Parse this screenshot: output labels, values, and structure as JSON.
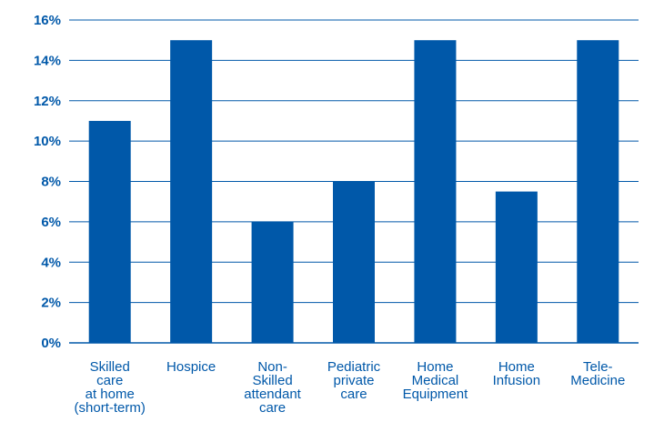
{
  "colors": {
    "bar": "#0058A9",
    "text": "#0058A9",
    "grid": "#0058A9"
  },
  "chart_data": {
    "type": "bar",
    "title": "",
    "xlabel": "",
    "ylabel": "",
    "ylim": [
      0,
      16
    ],
    "yticks": [
      0,
      2,
      4,
      6,
      8,
      10,
      12,
      14,
      16
    ],
    "ytick_labels": [
      "0%",
      "2%",
      "4%",
      "6%",
      "8%",
      "10%",
      "12%",
      "14%",
      "16%"
    ],
    "grid": true,
    "legend": "none",
    "categories": [
      "Skilled care at home (short-term)",
      "Hospice",
      "Non-Skilled attendant care",
      "Pediatric private care",
      "Home Medical Equipment",
      "Home Infusion",
      "Tele-Medicine"
    ],
    "category_lines": [
      [
        "Skilled",
        "care",
        "at home",
        "(short-term)"
      ],
      [
        "Hospice"
      ],
      [
        "Non-",
        "Skilled",
        "attendant",
        "care"
      ],
      [
        "Pediatric",
        "private",
        "care"
      ],
      [
        "Home",
        "Medical",
        "Equipment"
      ],
      [
        "Home",
        "Infusion"
      ],
      [
        "Tele-",
        "Medicine"
      ]
    ],
    "values": [
      11,
      15,
      6,
      8,
      15,
      7.5,
      15
    ]
  }
}
